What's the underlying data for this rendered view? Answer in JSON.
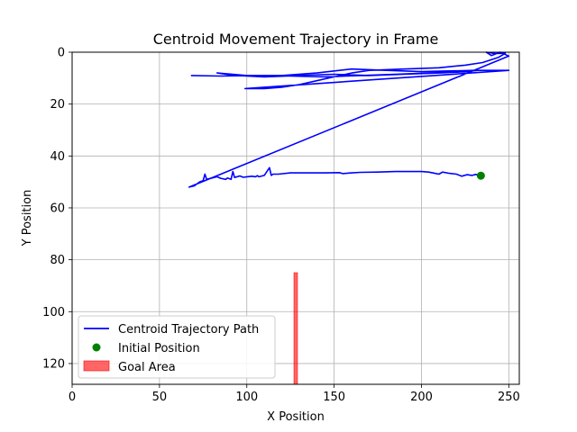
{
  "chart_data": {
    "type": "line",
    "title": "Centroid Movement Trajectory in Frame",
    "xlabel": "X Position",
    "ylabel": "Y Position",
    "xlim": [
      0,
      256
    ],
    "ylim": [
      128,
      0
    ],
    "y_inverted": true,
    "grid": true,
    "legend_placement": "lower-left",
    "x_ticks": [
      0,
      50,
      100,
      150,
      200,
      250
    ],
    "y_ticks": [
      0,
      20,
      40,
      60,
      80,
      100,
      120
    ],
    "series": [
      {
        "name": "Centroid Trajectory Path",
        "color": "#0000ff",
        "x": [
          234,
          231,
          229,
          226,
          223,
          220,
          216,
          212,
          210,
          207,
          204,
          200,
          195,
          185,
          175,
          165,
          160,
          155,
          153,
          145,
          135,
          125,
          118,
          115,
          114,
          113,
          110,
          107,
          106,
          105,
          103,
          100,
          98,
          96,
          93,
          92,
          91,
          89,
          88,
          85,
          83,
          80,
          77,
          76,
          75,
          73,
          70,
          67,
          250,
          245,
          240,
          237,
          242,
          248,
          244,
          235,
          225,
          210,
          190,
          170,
          160,
          150,
          140,
          130,
          120,
          110,
          99,
          250,
          230,
          200,
          180,
          160,
          140,
          120,
          100,
          83,
          88,
          95,
          110,
          130,
          150,
          170,
          190,
          210,
          226,
          232,
          225,
          205,
          185,
          165,
          145,
          125,
          105,
          85,
          68
        ],
        "y": [
          47.6,
          47.1,
          47.5,
          47.2,
          47.8,
          47.0,
          46.7,
          46.2,
          47.0,
          46.6,
          46.2,
          46.0,
          46.0,
          46.0,
          46.2,
          46.3,
          46.5,
          46.8,
          46.4,
          46.5,
          46.5,
          46.5,
          47.0,
          47.0,
          47.5,
          44.5,
          47.5,
          48.0,
          47.6,
          48.0,
          47.8,
          48.0,
          48.2,
          47.7,
          48.3,
          46.0,
          49.0,
          48.5,
          49.0,
          48.6,
          48.0,
          48.5,
          49.0,
          47.0,
          49.5,
          50.0,
          51.5,
          52.0,
          1.5,
          0.0,
          1.3,
          0.0,
          0.5,
          0.4,
          2.0,
          4.0,
          5.0,
          6.0,
          6.5,
          7.0,
          8.0,
          9.5,
          11.0,
          12.5,
          13.5,
          14.0,
          14.0,
          7.0,
          7.0,
          7.5,
          7.0,
          6.5,
          8.0,
          9.0,
          9.0,
          8.0,
          8.5,
          9.0,
          9.5,
          9.0,
          8.5,
          9.0,
          8.5,
          8.0,
          7.5,
          7.0,
          7.5,
          8.0,
          8.5,
          9.0,
          9.5,
          9.2,
          9.0,
          9.2,
          9.0
        ]
      }
    ],
    "initial_position": {
      "name": "Initial Position",
      "color": "#008000",
      "x": 234,
      "y": 47.6
    },
    "goal_area": {
      "name": "Goal Area",
      "color": "#ff0000",
      "x_min": 127,
      "x_max": 129,
      "y_min": 85,
      "y_max": 128
    }
  }
}
